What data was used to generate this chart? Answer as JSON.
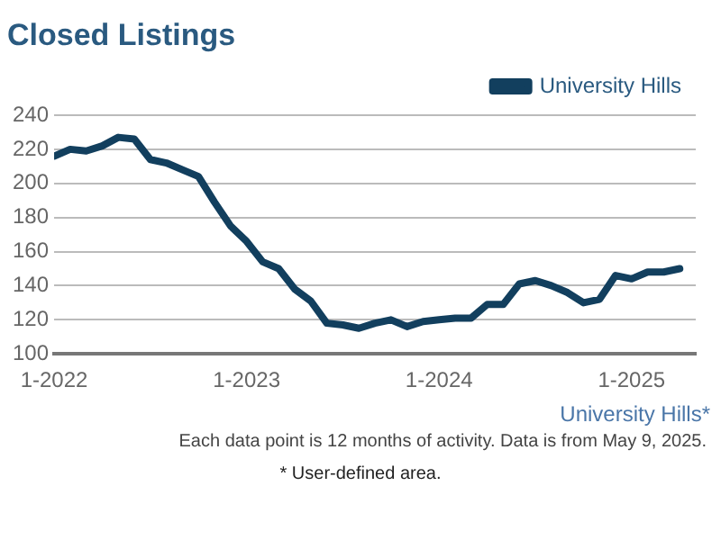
{
  "chart_data": {
    "type": "line",
    "title": "Closed Listings",
    "x": [
      "2022-01",
      "2022-02",
      "2022-03",
      "2022-04",
      "2022-05",
      "2022-06",
      "2022-07",
      "2022-08",
      "2022-09",
      "2022-10",
      "2022-11",
      "2022-12",
      "2023-01",
      "2023-02",
      "2023-03",
      "2023-04",
      "2023-05",
      "2023-06",
      "2023-07",
      "2023-08",
      "2023-09",
      "2023-10",
      "2023-11",
      "2023-12",
      "2024-01",
      "2024-02",
      "2024-03",
      "2024-04",
      "2024-05",
      "2024-06",
      "2024-07",
      "2024-08",
      "2024-09",
      "2024-10",
      "2024-11",
      "2024-12",
      "2025-01",
      "2025-02",
      "2025-03",
      "2025-04"
    ],
    "series": [
      {
        "name": "University Hills",
        "color": "#123f5e",
        "values": [
          216,
          220,
          219,
          222,
          227,
          226,
          214,
          212,
          208,
          204,
          189,
          175,
          166,
          154,
          150,
          138,
          131,
          118,
          117,
          115,
          118,
          120,
          116,
          119,
          120,
          121,
          121,
          129,
          129,
          141,
          143,
          140,
          136,
          130,
          132,
          146,
          144,
          148,
          148,
          150
        ]
      }
    ],
    "xlim": [
      "2022-01",
      "2025-05"
    ],
    "xticks": [
      {
        "value": "2022-01",
        "label": "1-2022"
      },
      {
        "value": "2023-01",
        "label": "1-2023"
      },
      {
        "value": "2024-01",
        "label": "1-2024"
      },
      {
        "value": "2025-01",
        "label": "1-2025"
      }
    ],
    "ylim": [
      100,
      240
    ],
    "yticks": [
      100,
      120,
      140,
      160,
      180,
      200,
      220,
      240
    ],
    "grid": "y",
    "legend": "top",
    "marker": "none",
    "annotations": [
      "University Hills*",
      "Each data point is 12 months of activity. Data is from May 9, 2025.",
      "* User-defined area."
    ]
  }
}
